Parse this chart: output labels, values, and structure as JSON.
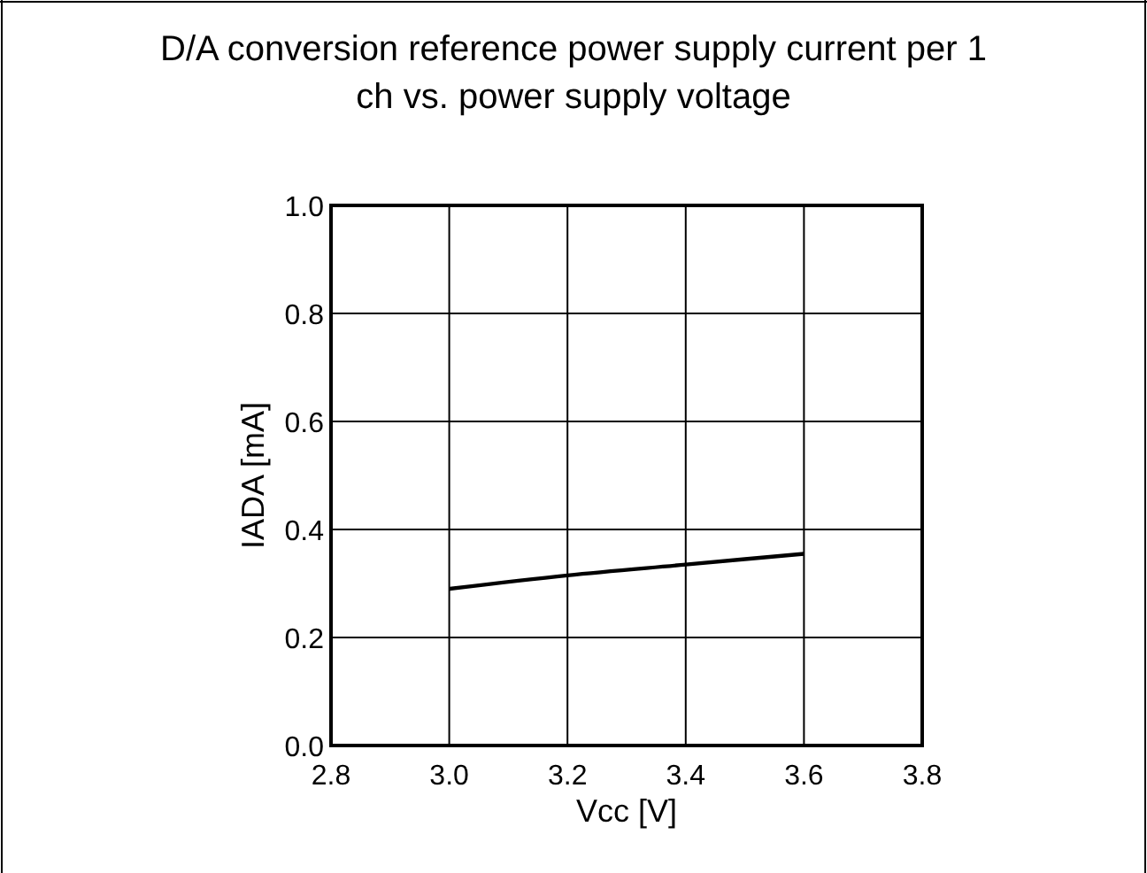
{
  "chart_data": {
    "type": "line",
    "title": "D/A conversion reference power supply current per 1 ch vs. power supply voltage",
    "xlabel": "Vcc [V]",
    "ylabel": "IADA [mA]",
    "x": [
      3.0,
      3.2,
      3.4,
      3.6
    ],
    "series": [
      {
        "color": "#000000",
        "values": [
          0.29,
          0.315,
          0.335,
          0.355
        ]
      }
    ],
    "xlim": [
      2.8,
      3.8
    ],
    "xticks": [
      2.8,
      {
        "value": 3,
        "label": "3.0"
      },
      3.2,
      3.4,
      3.6,
      3.8
    ],
    "ylim": [
      0,
      1
    ],
    "yticks": [
      {
        "value": 0,
        "label": "0.0"
      },
      0.2,
      0.4,
      0.6,
      0.8,
      {
        "value": 1,
        "label": "1.0"
      }
    ],
    "grid": true,
    "line_style": "solid",
    "marker": "none"
  }
}
